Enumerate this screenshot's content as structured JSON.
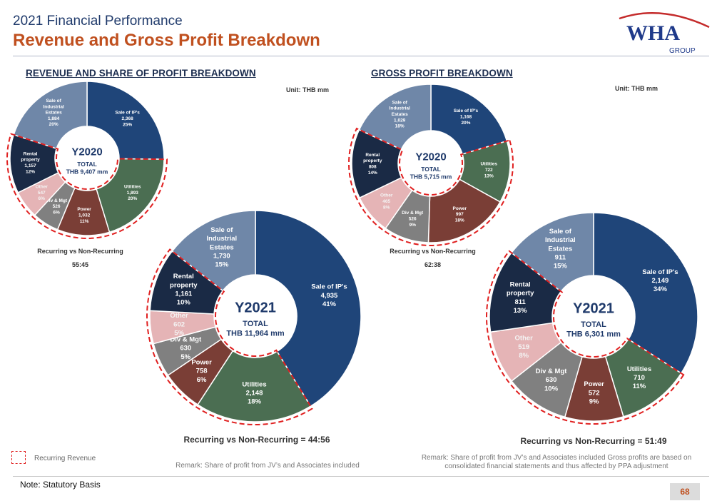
{
  "header": {
    "supertitle": "2021 Financial Performance",
    "title": "Revenue and Gross Profit Breakdown",
    "logo_text": "WHA",
    "logo_subtext": "GROUP"
  },
  "sections": {
    "revenue_heading": "REVENUE AND SHARE OF PROFIT BREAKDOWN",
    "gross_heading": "GROSS PROFIT BREAKDOWN",
    "revenue_unit": "Unit: THB mm",
    "gross_unit": "Unit: THB mm"
  },
  "recurring": {
    "rev_2020_label": "Recurring vs Non-Recurring",
    "rev_2020_value": "55:45",
    "gp_2020_label": "Recurring vs Non-Recurring",
    "gp_2020_value": "62:38",
    "rev_2021": "Recurring vs Non-Recurring = 44:56",
    "gp_2021": "Recurring vs Non-Recurring = 51:49"
  },
  "legend": {
    "recurring_revenue": "Recurring Revenue"
  },
  "remarks": {
    "revenue": "Remark: Share of profit from JV’s and Associates included",
    "gross_line1": "Remark: Share of profit from JV’s and Associates included Gross profits are based on",
    "gross_line2": "consolidated financial statements and thus  affected by PPA adjustment"
  },
  "footer": {
    "note": "Note: Statutory Basis",
    "page": "68"
  },
  "colors": {
    "sale_of_ips": "#1f4579",
    "utilities": "#4b6e52",
    "power": "#7a3e36",
    "div_mgt": "#808080",
    "other": "#e5b4b6",
    "rental_property": "#1a2a45",
    "industrial_estates": "#6f87a8",
    "recurring_outline": "#e02020",
    "title_accent": "#c0501f",
    "center_title": "#1f3a6b"
  },
  "chart_data": [
    {
      "type": "pie",
      "id": "revenue_2020",
      "center_title": "Y2020",
      "center_sub1": "TOTAL",
      "center_sub2": "THB 9,407 mm",
      "slices": [
        {
          "key": "sale_of_ips",
          "label": "Sale of IP's",
          "value": "2,368",
          "pct": "25%",
          "num": 2368,
          "recurring": false
        },
        {
          "key": "utilities",
          "label": "Utilities",
          "value": "1,893",
          "pct": "20%",
          "num": 1893,
          "recurring": true
        },
        {
          "key": "power",
          "label": "Power",
          "value": "1,032",
          "pct": "11%",
          "num": 1032,
          "recurring": true
        },
        {
          "key": "div_mgt",
          "label": "Div & Mgt",
          "value": "526",
          "pct": "6%",
          "num": 526,
          "recurring": true
        },
        {
          "key": "other",
          "label": "Other",
          "value": "547",
          "pct": "6%",
          "num": 547,
          "recurring": true
        },
        {
          "key": "rental_property",
          "label": "Rental property",
          "value": "1,157",
          "pct": "12%",
          "num": 1157,
          "recurring": true
        },
        {
          "key": "industrial_estates",
          "label": "Sale of Industrial Estates",
          "value": "1,884",
          "pct": "20%",
          "num": 1884,
          "recurring": false
        }
      ]
    },
    {
      "type": "pie",
      "id": "revenue_2021",
      "center_title": "Y2021",
      "center_sub1": "TOTAL",
      "center_sub2": "THB 11,964 mm",
      "slices": [
        {
          "key": "sale_of_ips",
          "label": "Sale of IP's",
          "value": "4,935",
          "pct": "41%",
          "num": 4935,
          "recurring": false
        },
        {
          "key": "utilities",
          "label": "Utilities",
          "value": "2,148",
          "pct": "18%",
          "num": 2148,
          "recurring": true
        },
        {
          "key": "power",
          "label": "Power",
          "value": "758",
          "pct": "6%",
          "num": 758,
          "recurring": true
        },
        {
          "key": "div_mgt",
          "label": "Div & Mgt",
          "value": "630",
          "pct": "5%",
          "num": 630,
          "recurring": true
        },
        {
          "key": "other",
          "label": "Other",
          "value": "602",
          "pct": "5%",
          "num": 602,
          "recurring": true
        },
        {
          "key": "rental_property",
          "label": "Rental property",
          "value": "1,161",
          "pct": "10%",
          "num": 1161,
          "recurring": true
        },
        {
          "key": "industrial_estates",
          "label": "Sale of Industrial Estates",
          "value": "1,730",
          "pct": "15%",
          "num": 1730,
          "recurring": false
        }
      ]
    },
    {
      "type": "pie",
      "id": "gross_2020",
      "center_title": "Y2020",
      "center_sub1": "TOTAL",
      "center_sub2": "THB 5,715 mm",
      "slices": [
        {
          "key": "sale_of_ips",
          "label": "Sale of IP's",
          "value": "1,168",
          "pct": "20%",
          "num": 1168,
          "recurring": false
        },
        {
          "key": "utilities",
          "label": "Utilities",
          "value": "722",
          "pct": "13%",
          "num": 722,
          "recurring": true
        },
        {
          "key": "power",
          "label": "Power",
          "value": "997",
          "pct": "18%",
          "num": 997,
          "recurring": true
        },
        {
          "key": "div_mgt",
          "label": "Div & Mgt",
          "value": "526",
          "pct": "9%",
          "num": 526,
          "recurring": true
        },
        {
          "key": "other",
          "label": "Other",
          "value": "465",
          "pct": "8%",
          "num": 465,
          "recurring": true
        },
        {
          "key": "rental_property",
          "label": "Rental property",
          "value": "808",
          "pct": "14%",
          "num": 808,
          "recurring": true
        },
        {
          "key": "industrial_estates",
          "label": "Sale of Industrial Estates",
          "value": "1,029",
          "pct": "18%",
          "num": 1029,
          "recurring": false
        }
      ]
    },
    {
      "type": "pie",
      "id": "gross_2021",
      "center_title": "Y2021",
      "center_sub1": "TOTAL",
      "center_sub2": "THB 6,301 mm",
      "slices": [
        {
          "key": "sale_of_ips",
          "label": "Sale of IP's",
          "value": "2,149",
          "pct": "34%",
          "num": 2149,
          "recurring": false
        },
        {
          "key": "utilities",
          "label": "Utilities",
          "value": "710",
          "pct": "11%",
          "num": 710,
          "recurring": true
        },
        {
          "key": "power",
          "label": "Power",
          "value": "572",
          "pct": "9%",
          "num": 572,
          "recurring": true
        },
        {
          "key": "div_mgt",
          "label": "Div & Mgt",
          "value": "630",
          "pct": "10%",
          "num": 630,
          "recurring": true
        },
        {
          "key": "other",
          "label": "Other",
          "value": "519",
          "pct": "8%",
          "num": 519,
          "recurring": true
        },
        {
          "key": "rental_property",
          "label": "Rental property",
          "value": "811",
          "pct": "13%",
          "num": 811,
          "recurring": true
        },
        {
          "key": "industrial_estates",
          "label": "Sale of Industrial Estates",
          "value": "911",
          "pct": "15%",
          "num": 911,
          "recurring": false
        }
      ]
    }
  ]
}
